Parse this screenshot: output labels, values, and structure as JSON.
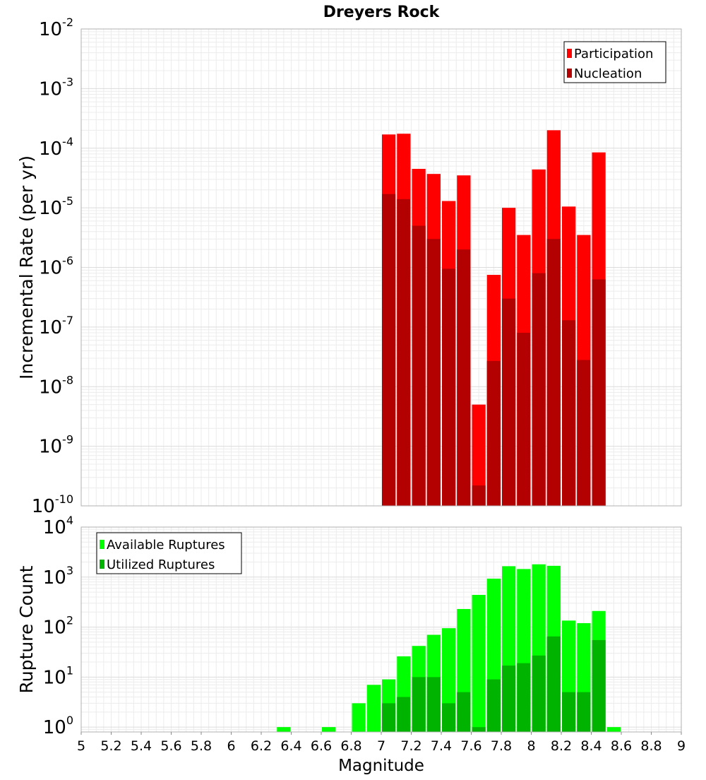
{
  "chart_data": [
    {
      "type": "bar",
      "title": "Dreyers Rock",
      "ylabel": "Incremental Rate (per yr)",
      "xlabel": "",
      "yscale": "log",
      "xlim": [
        5,
        9
      ],
      "ylim": [
        1e-10,
        0.01
      ],
      "bar_width": 0.1,
      "y_tick_exponents": [
        "-2",
        "-3",
        "-4",
        "-5",
        "-6",
        "-7",
        "-8",
        "-9",
        "-10"
      ],
      "y_tick_base": "10",
      "legend": {
        "position": "top-right",
        "entries": [
          "Participation",
          "Nucleation"
        ]
      },
      "x": [
        7.05,
        7.15,
        7.25,
        7.35,
        7.45,
        7.55,
        7.65,
        7.75,
        7.85,
        7.95,
        8.05,
        8.15,
        8.25,
        8.35,
        8.45
      ],
      "series": [
        {
          "name": "Participation",
          "color": "#ff0000",
          "values": [
            0.00017,
            0.000175,
            4.5e-05,
            3.7e-05,
            1.3e-05,
            3.5e-05,
            5e-09,
            7.5e-07,
            1e-05,
            3.5e-06,
            4.4e-05,
            0.0002,
            1.05e-05,
            3.5e-06,
            8.5e-05
          ]
        },
        {
          "name": "Nucleation",
          "color": "#b30000",
          "values": [
            1.7e-05,
            1.4e-05,
            5e-06,
            3e-06,
            9.5e-07,
            2e-06,
            2.2e-10,
            2.7e-08,
            3e-07,
            8e-08,
            8e-07,
            3e-06,
            1.3e-07,
            2.8e-08,
            6.3e-07
          ]
        }
      ]
    },
    {
      "type": "bar",
      "title": "",
      "ylabel": "Rupture Count",
      "xlabel": "Magnitude",
      "yscale": "log",
      "xlim": [
        5,
        9
      ],
      "ylim": [
        0.8,
        10000
      ],
      "bar_width": 0.1,
      "y_tick_exponents": [
        "4",
        "3",
        "2",
        "1",
        "0"
      ],
      "y_tick_base": "10",
      "x_tick_labels": [
        "5",
        "5.2",
        "5.4",
        "5.6",
        "5.8",
        "6",
        "6.2",
        "6.4",
        "6.6",
        "6.8",
        "7",
        "7.2",
        "7.4",
        "7.6",
        "7.8",
        "8",
        "8.2",
        "8.4",
        "8.6",
        "8.8",
        "9"
      ],
      "legend": {
        "position": "top-left",
        "entries": [
          "Available Ruptures",
          "Utilized Ruptures"
        ]
      },
      "x": [
        6.35,
        6.65,
        6.85,
        6.95,
        7.05,
        7.15,
        7.25,
        7.35,
        7.45,
        7.55,
        7.65,
        7.75,
        7.85,
        7.95,
        8.05,
        8.15,
        8.25,
        8.35,
        8.45,
        8.55
      ],
      "series": [
        {
          "name": "Available Ruptures",
          "color": "#00ff00",
          "values": [
            1,
            1,
            3,
            7,
            9,
            26,
            42,
            70,
            95,
            230,
            440,
            930,
            1650,
            1450,
            1800,
            1680,
            135,
            120,
            210,
            1
          ]
        },
        {
          "name": "Utilized Ruptures",
          "color": "#00b300",
          "values": [
            null,
            null,
            null,
            null,
            3,
            4,
            10,
            10,
            3,
            5,
            1,
            9,
            17,
            19,
            27,
            65,
            5,
            5,
            55,
            null
          ]
        }
      ]
    }
  ]
}
